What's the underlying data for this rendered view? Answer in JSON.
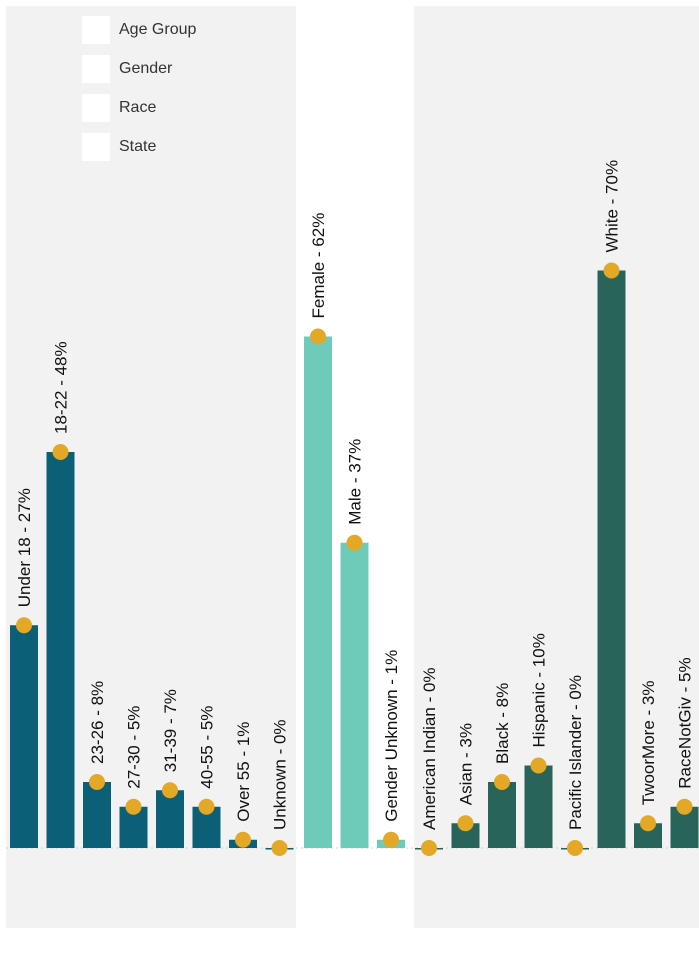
{
  "legend": {
    "items": [
      "Age Group",
      "Gender",
      "Race",
      "State"
    ]
  },
  "colors": {
    "age_group": "#0b6077",
    "gender": "#6fcbb9",
    "race": "#28645a",
    "marker": "#e3a826",
    "band": "#f2f2f2"
  },
  "chart_data": {
    "type": "bar",
    "ylim": [
      0,
      100
    ],
    "grid": false,
    "legend_position": "top-left",
    "groups": [
      {
        "name": "Age Group",
        "categories": [
          "Under 18",
          "18-22",
          "23-26",
          "27-30",
          "31-39",
          "40-55",
          "Over 55",
          "Unknown"
        ],
        "values": [
          27,
          48,
          8,
          5,
          7,
          5,
          1,
          0
        ],
        "labels": [
          "Under 18 - 27%",
          "18-22 - 48%",
          "23-26 - 8%",
          "27-30 - 5%",
          "31-39 - 7%",
          "40-55 - 5%",
          "Over 55 - 1%",
          "Unknown - 0%"
        ]
      },
      {
        "name": "Gender",
        "categories": [
          "Female",
          "Male",
          "Gender Unknown"
        ],
        "values": [
          62,
          37,
          1
        ],
        "labels": [
          "Female - 62%",
          "Male - 37%",
          "Gender Unknown - 1%"
        ]
      },
      {
        "name": "Race",
        "categories": [
          "American Indian",
          "Asian",
          "Black",
          "Hispanic",
          "Pacific Islander",
          "White",
          "TwoorMore",
          "RaceNotGiv"
        ],
        "values": [
          0,
          3,
          8,
          10,
          0,
          70,
          3,
          5
        ],
        "labels": [
          "American Indian - 0%",
          "Asian - 3%",
          "Black - 8%",
          "Hispanic - 10%",
          "Pacific Islander - 0%",
          "White - 70%",
          "TwoorMore - 3%",
          "RaceNotGiv - 5%"
        ]
      }
    ]
  }
}
